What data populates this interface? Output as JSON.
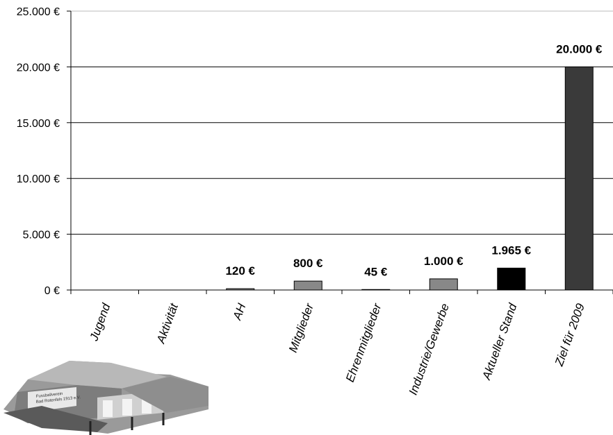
{
  "chart_data": {
    "type": "bar",
    "categories": [
      "Jugend",
      "Aktivität",
      "AH",
      "Mitglieder",
      "Ehrenmitglieder",
      "Industrie/Gewerbe",
      "Aktueller Stand",
      "Ziel für 2009"
    ],
    "values": [
      0,
      0,
      120,
      800,
      45,
      1000,
      1965,
      20000
    ],
    "data_labels": [
      "",
      "",
      "120 €",
      "800 €",
      "45 €",
      "1.000 €",
      "1.965 €",
      "20.000 €"
    ],
    "bar_colors": [
      "#888888",
      "#888888",
      "#888888",
      "#888888",
      "#888888",
      "#888888",
      "#000000",
      "#3a3a3a"
    ],
    "y_ticks": [
      0,
      5000,
      10000,
      15000,
      20000,
      25000
    ],
    "y_tick_labels": [
      "0 €",
      "5.000 €",
      "10.000 €",
      "15.000 €",
      "20.000 €",
      "25.000 €"
    ],
    "ylim": [
      0,
      25000
    ],
    "grid": true,
    "title": "",
    "xlabel": "",
    "ylabel": ""
  },
  "logo": {
    "name": "clubhouse-illustration",
    "lines": [
      "Fussballverein",
      "Bad Rotenfels 1913 e.V."
    ]
  }
}
